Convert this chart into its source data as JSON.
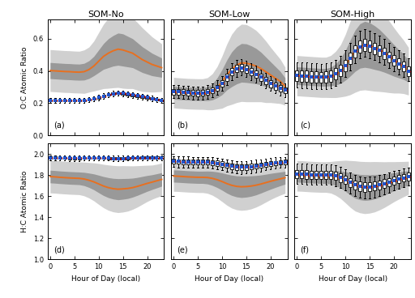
{
  "hours": [
    0,
    1,
    2,
    3,
    4,
    5,
    6,
    7,
    8,
    9,
    10,
    11,
    12,
    13,
    14,
    15,
    16,
    17,
    18,
    19,
    20,
    21,
    22,
    23
  ],
  "titles": [
    "SOM-No",
    "SOM-Low",
    "SOM-High"
  ],
  "panel_labels_top": [
    "(a)",
    "(b)",
    "(c)"
  ],
  "panel_labels_bot": [
    "(d)",
    "(e)",
    "(f)"
  ],
  "ylabel_top": "O:C Atomic Ratio",
  "ylabel_bot": "H:C Atomic Ratio",
  "xlabel": "Hour of Day (local)",
  "oc_sim_mean_no": [
    0.402,
    0.4,
    0.398,
    0.396,
    0.395,
    0.393,
    0.392,
    0.395,
    0.408,
    0.43,
    0.46,
    0.49,
    0.51,
    0.525,
    0.535,
    0.53,
    0.52,
    0.51,
    0.49,
    0.47,
    0.455,
    0.44,
    0.43,
    0.42
  ],
  "oc_sim_std1_no": [
    0.05,
    0.05,
    0.05,
    0.05,
    0.05,
    0.05,
    0.05,
    0.052,
    0.055,
    0.06,
    0.07,
    0.08,
    0.09,
    0.095,
    0.1,
    0.1,
    0.095,
    0.09,
    0.085,
    0.08,
    0.075,
    0.07,
    0.065,
    0.06
  ],
  "oc_sim_std2_no": [
    0.13,
    0.13,
    0.13,
    0.13,
    0.13,
    0.13,
    0.13,
    0.135,
    0.14,
    0.155,
    0.178,
    0.2,
    0.218,
    0.23,
    0.238,
    0.238,
    0.23,
    0.22,
    0.21,
    0.198,
    0.185,
    0.172,
    0.16,
    0.148
  ],
  "oc_obs_median_no": [
    0.215,
    0.215,
    0.215,
    0.215,
    0.215,
    0.215,
    0.215,
    0.218,
    0.222,
    0.228,
    0.235,
    0.243,
    0.252,
    0.258,
    0.262,
    0.26,
    0.255,
    0.25,
    0.245,
    0.24,
    0.235,
    0.228,
    0.222,
    0.218
  ],
  "oc_obs_q1_no": [
    0.21,
    0.21,
    0.21,
    0.21,
    0.21,
    0.21,
    0.21,
    0.213,
    0.216,
    0.222,
    0.228,
    0.237,
    0.246,
    0.252,
    0.256,
    0.254,
    0.248,
    0.243,
    0.238,
    0.233,
    0.228,
    0.222,
    0.216,
    0.213
  ],
  "oc_obs_q3_no": [
    0.22,
    0.22,
    0.22,
    0.22,
    0.22,
    0.22,
    0.22,
    0.223,
    0.228,
    0.234,
    0.242,
    0.25,
    0.259,
    0.265,
    0.269,
    0.267,
    0.262,
    0.257,
    0.252,
    0.247,
    0.242,
    0.235,
    0.228,
    0.224
  ],
  "oc_obs_wlo_no": [
    0.2,
    0.2,
    0.2,
    0.2,
    0.2,
    0.2,
    0.2,
    0.203,
    0.206,
    0.212,
    0.218,
    0.227,
    0.236,
    0.242,
    0.246,
    0.244,
    0.238,
    0.233,
    0.228,
    0.223,
    0.218,
    0.212,
    0.206,
    0.203
  ],
  "oc_obs_whi_no": [
    0.23,
    0.23,
    0.23,
    0.23,
    0.23,
    0.23,
    0.23,
    0.233,
    0.238,
    0.244,
    0.252,
    0.26,
    0.269,
    0.275,
    0.279,
    0.277,
    0.272,
    0.267,
    0.262,
    0.257,
    0.252,
    0.245,
    0.238,
    0.234
  ],
  "oc_sim_mean_low": [
    0.265,
    0.262,
    0.26,
    0.258,
    0.257,
    0.256,
    0.256,
    0.258,
    0.27,
    0.295,
    0.33,
    0.375,
    0.41,
    0.435,
    0.45,
    0.448,
    0.44,
    0.43,
    0.415,
    0.395,
    0.375,
    0.355,
    0.335,
    0.305
  ],
  "oc_sim_std1_low": [
    0.04,
    0.04,
    0.04,
    0.04,
    0.04,
    0.04,
    0.04,
    0.043,
    0.05,
    0.062,
    0.078,
    0.093,
    0.108,
    0.116,
    0.12,
    0.12,
    0.116,
    0.11,
    0.102,
    0.092,
    0.082,
    0.072,
    0.062,
    0.052
  ],
  "oc_sim_std2_low": [
    0.095,
    0.095,
    0.095,
    0.095,
    0.095,
    0.095,
    0.095,
    0.1,
    0.112,
    0.132,
    0.162,
    0.192,
    0.218,
    0.232,
    0.24,
    0.24,
    0.232,
    0.222,
    0.207,
    0.192,
    0.172,
    0.155,
    0.138,
    0.118
  ],
  "oc_obs_median_low": [
    0.27,
    0.27,
    0.268,
    0.265,
    0.263,
    0.262,
    0.263,
    0.268,
    0.278,
    0.295,
    0.32,
    0.36,
    0.395,
    0.415,
    0.42,
    0.41,
    0.395,
    0.38,
    0.36,
    0.34,
    0.32,
    0.305,
    0.29,
    0.28
  ],
  "oc_obs_q1_low": [
    0.252,
    0.252,
    0.25,
    0.247,
    0.245,
    0.244,
    0.245,
    0.25,
    0.26,
    0.276,
    0.3,
    0.338,
    0.372,
    0.392,
    0.397,
    0.387,
    0.372,
    0.357,
    0.337,
    0.317,
    0.299,
    0.284,
    0.27,
    0.261
  ],
  "oc_obs_q3_low": [
    0.288,
    0.288,
    0.286,
    0.283,
    0.281,
    0.28,
    0.281,
    0.286,
    0.296,
    0.314,
    0.34,
    0.382,
    0.418,
    0.438,
    0.443,
    0.433,
    0.418,
    0.403,
    0.383,
    0.363,
    0.341,
    0.326,
    0.311,
    0.299
  ],
  "oc_obs_wlo_low": [
    0.23,
    0.23,
    0.228,
    0.225,
    0.223,
    0.222,
    0.223,
    0.228,
    0.238,
    0.253,
    0.275,
    0.312,
    0.344,
    0.364,
    0.37,
    0.36,
    0.344,
    0.329,
    0.311,
    0.293,
    0.275,
    0.261,
    0.248,
    0.239
  ],
  "oc_obs_whi_low": [
    0.31,
    0.31,
    0.308,
    0.306,
    0.304,
    0.303,
    0.304,
    0.31,
    0.322,
    0.34,
    0.368,
    0.412,
    0.447,
    0.467,
    0.472,
    0.462,
    0.447,
    0.432,
    0.41,
    0.388,
    0.368,
    0.35,
    0.334,
    0.321
  ],
  "oc_sim_mean_high": [
    0.37,
    0.368,
    0.366,
    0.364,
    0.362,
    0.36,
    0.36,
    0.365,
    0.378,
    0.4,
    0.435,
    0.48,
    0.525,
    0.555,
    0.565,
    0.558,
    0.545,
    0.53,
    0.51,
    0.488,
    0.465,
    0.445,
    0.425,
    0.398
  ],
  "oc_sim_std1_high": [
    0.055,
    0.055,
    0.055,
    0.055,
    0.055,
    0.055,
    0.055,
    0.058,
    0.066,
    0.078,
    0.093,
    0.112,
    0.128,
    0.138,
    0.143,
    0.141,
    0.136,
    0.128,
    0.118,
    0.108,
    0.098,
    0.088,
    0.078,
    0.068
  ],
  "oc_sim_std2_high": [
    0.125,
    0.125,
    0.125,
    0.125,
    0.125,
    0.125,
    0.125,
    0.131,
    0.144,
    0.162,
    0.192,
    0.228,
    0.258,
    0.276,
    0.283,
    0.28,
    0.271,
    0.258,
    0.241,
    0.223,
    0.203,
    0.183,
    0.166,
    0.148
  ],
  "oc_obs_median_high": [
    0.37,
    0.368,
    0.366,
    0.364,
    0.362,
    0.36,
    0.362,
    0.368,
    0.382,
    0.403,
    0.433,
    0.477,
    0.522,
    0.55,
    0.56,
    0.552,
    0.54,
    0.526,
    0.507,
    0.486,
    0.464,
    0.445,
    0.426,
    0.398
  ],
  "oc_obs_q1_high": [
    0.335,
    0.333,
    0.331,
    0.329,
    0.327,
    0.325,
    0.327,
    0.333,
    0.346,
    0.367,
    0.397,
    0.441,
    0.485,
    0.513,
    0.523,
    0.516,
    0.504,
    0.491,
    0.473,
    0.453,
    0.432,
    0.414,
    0.396,
    0.369
  ],
  "oc_obs_q3_high": [
    0.405,
    0.403,
    0.401,
    0.399,
    0.397,
    0.395,
    0.397,
    0.403,
    0.418,
    0.439,
    0.469,
    0.513,
    0.559,
    0.587,
    0.597,
    0.588,
    0.576,
    0.561,
    0.541,
    0.519,
    0.496,
    0.476,
    0.456,
    0.427
  ],
  "oc_obs_wlo_high": [
    0.295,
    0.293,
    0.291,
    0.289,
    0.287,
    0.285,
    0.287,
    0.293,
    0.307,
    0.329,
    0.36,
    0.405,
    0.449,
    0.478,
    0.488,
    0.48,
    0.468,
    0.455,
    0.438,
    0.418,
    0.397,
    0.379,
    0.361,
    0.335
  ],
  "oc_obs_whi_high": [
    0.455,
    0.453,
    0.451,
    0.449,
    0.447,
    0.445,
    0.447,
    0.455,
    0.47,
    0.493,
    0.527,
    0.573,
    0.619,
    0.647,
    0.657,
    0.648,
    0.635,
    0.619,
    0.598,
    0.574,
    0.549,
    0.528,
    0.506,
    0.476
  ],
  "hc_sim_mean_no": [
    1.785,
    1.782,
    1.778,
    1.775,
    1.772,
    1.77,
    1.768,
    1.762,
    1.75,
    1.735,
    1.715,
    1.695,
    1.68,
    1.67,
    1.665,
    1.668,
    1.672,
    1.68,
    1.692,
    1.706,
    1.72,
    1.732,
    1.745,
    1.758
  ],
  "hc_sim_std1_no": [
    0.06,
    0.06,
    0.06,
    0.06,
    0.06,
    0.06,
    0.06,
    0.063,
    0.068,
    0.075,
    0.083,
    0.09,
    0.095,
    0.098,
    0.1,
    0.098,
    0.095,
    0.09,
    0.085,
    0.08,
    0.075,
    0.07,
    0.067,
    0.064
  ],
  "hc_sim_std2_no": [
    0.155,
    0.155,
    0.155,
    0.155,
    0.155,
    0.155,
    0.155,
    0.16,
    0.168,
    0.18,
    0.194,
    0.206,
    0.215,
    0.22,
    0.222,
    0.22,
    0.215,
    0.206,
    0.196,
    0.184,
    0.172,
    0.162,
    0.157,
    0.155
  ],
  "hc_obs_median_no": [
    1.965,
    1.965,
    1.963,
    1.961,
    1.96,
    1.96,
    1.96,
    1.962,
    1.963,
    1.963,
    1.963,
    1.962,
    1.96,
    1.958,
    1.957,
    1.958,
    1.96,
    1.961,
    1.963,
    1.964,
    1.964,
    1.965,
    1.965,
    1.965
  ],
  "hc_obs_q1_no": [
    1.955,
    1.955,
    1.953,
    1.951,
    1.95,
    1.95,
    1.95,
    1.952,
    1.953,
    1.953,
    1.952,
    1.951,
    1.949,
    1.947,
    1.946,
    1.947,
    1.949,
    1.951,
    1.953,
    1.954,
    1.954,
    1.955,
    1.955,
    1.955
  ],
  "hc_obs_q3_no": [
    1.975,
    1.975,
    1.973,
    1.971,
    1.97,
    1.97,
    1.97,
    1.972,
    1.973,
    1.973,
    1.973,
    1.973,
    1.971,
    1.969,
    1.968,
    1.969,
    1.971,
    1.972,
    1.973,
    1.974,
    1.974,
    1.975,
    1.975,
    1.975
  ],
  "hc_obs_wlo_no": [
    1.94,
    1.94,
    1.938,
    1.936,
    1.935,
    1.935,
    1.935,
    1.937,
    1.939,
    1.94,
    1.94,
    1.939,
    1.937,
    1.935,
    1.934,
    1.935,
    1.937,
    1.939,
    1.94,
    1.941,
    1.941,
    1.941,
    1.941,
    1.94
  ],
  "hc_obs_whi_no": [
    1.988,
    1.988,
    1.986,
    1.984,
    1.983,
    1.983,
    1.983,
    1.985,
    1.986,
    1.987,
    1.987,
    1.987,
    1.985,
    1.983,
    1.982,
    1.983,
    1.985,
    1.986,
    1.987,
    1.988,
    1.988,
    1.988,
    1.988,
    1.988
  ],
  "hc_sim_mean_low": [
    1.79,
    1.788,
    1.785,
    1.782,
    1.78,
    1.778,
    1.778,
    1.776,
    1.768,
    1.755,
    1.738,
    1.718,
    1.702,
    1.692,
    1.688,
    1.69,
    1.695,
    1.703,
    1.714,
    1.727,
    1.74,
    1.752,
    1.763,
    1.774
  ],
  "hc_sim_std1_low": [
    0.058,
    0.058,
    0.058,
    0.058,
    0.058,
    0.058,
    0.058,
    0.061,
    0.067,
    0.074,
    0.082,
    0.09,
    0.096,
    0.1,
    0.102,
    0.1,
    0.097,
    0.092,
    0.086,
    0.08,
    0.075,
    0.07,
    0.065,
    0.061
  ],
  "hc_sim_std2_low": [
    0.145,
    0.145,
    0.145,
    0.145,
    0.145,
    0.145,
    0.145,
    0.15,
    0.16,
    0.174,
    0.19,
    0.205,
    0.216,
    0.222,
    0.224,
    0.222,
    0.217,
    0.208,
    0.197,
    0.185,
    0.173,
    0.163,
    0.154,
    0.148
  ],
  "hc_obs_median_low": [
    1.93,
    1.928,
    1.926,
    1.924,
    1.923,
    1.923,
    1.923,
    1.922,
    1.918,
    1.912,
    1.903,
    1.892,
    1.882,
    1.876,
    1.874,
    1.876,
    1.88,
    1.886,
    1.893,
    1.9,
    1.907,
    1.913,
    1.918,
    1.922
  ],
  "hc_obs_q1_low": [
    1.908,
    1.906,
    1.904,
    1.902,
    1.901,
    1.901,
    1.901,
    1.9,
    1.895,
    1.888,
    1.878,
    1.866,
    1.855,
    1.849,
    1.847,
    1.849,
    1.854,
    1.861,
    1.869,
    1.877,
    1.885,
    1.891,
    1.897,
    1.901
  ],
  "hc_obs_q3_low": [
    1.952,
    1.95,
    1.948,
    1.946,
    1.945,
    1.945,
    1.945,
    1.944,
    1.941,
    1.936,
    1.928,
    1.918,
    1.909,
    1.903,
    1.901,
    1.903,
    1.906,
    1.911,
    1.917,
    1.923,
    1.929,
    1.935,
    1.939,
    1.943
  ],
  "hc_obs_wlo_low": [
    1.875,
    1.873,
    1.871,
    1.869,
    1.868,
    1.868,
    1.868,
    1.867,
    1.862,
    1.855,
    1.844,
    1.831,
    1.82,
    1.813,
    1.811,
    1.813,
    1.818,
    1.826,
    1.835,
    1.844,
    1.853,
    1.86,
    1.866,
    1.871
  ],
  "hc_obs_whi_low": [
    1.98,
    1.978,
    1.976,
    1.974,
    1.973,
    1.973,
    1.973,
    1.972,
    1.969,
    1.964,
    1.957,
    1.948,
    1.94,
    1.935,
    1.933,
    1.935,
    1.938,
    1.943,
    1.949,
    1.955,
    1.961,
    1.966,
    1.97,
    1.973
  ],
  "hc_sim_mean_high": [
    1.792,
    1.79,
    1.787,
    1.784,
    1.782,
    1.78,
    1.78,
    1.778,
    1.77,
    1.757,
    1.738,
    1.715,
    1.696,
    1.685,
    1.68,
    1.682,
    1.688,
    1.697,
    1.708,
    1.722,
    1.736,
    1.749,
    1.761,
    1.773
  ],
  "hc_sim_std1_high": [
    0.06,
    0.06,
    0.06,
    0.06,
    0.06,
    0.06,
    0.06,
    0.063,
    0.07,
    0.08,
    0.093,
    0.106,
    0.116,
    0.12,
    0.122,
    0.12,
    0.116,
    0.109,
    0.101,
    0.093,
    0.086,
    0.08,
    0.074,
    0.068
  ],
  "hc_sim_std2_high": [
    0.145,
    0.145,
    0.145,
    0.145,
    0.145,
    0.145,
    0.145,
    0.15,
    0.163,
    0.18,
    0.202,
    0.222,
    0.238,
    0.244,
    0.247,
    0.244,
    0.239,
    0.229,
    0.217,
    0.204,
    0.19,
    0.178,
    0.167,
    0.157
  ],
  "hc_obs_median_high": [
    1.808,
    1.806,
    1.804,
    1.802,
    1.801,
    1.801,
    1.801,
    1.798,
    1.79,
    1.775,
    1.754,
    1.728,
    1.705,
    1.692,
    1.685,
    1.688,
    1.694,
    1.704,
    1.717,
    1.731,
    1.746,
    1.759,
    1.772,
    1.785
  ],
  "hc_obs_q1_high": [
    1.77,
    1.768,
    1.766,
    1.764,
    1.763,
    1.763,
    1.763,
    1.76,
    1.751,
    1.735,
    1.713,
    1.686,
    1.662,
    1.648,
    1.641,
    1.644,
    1.651,
    1.662,
    1.676,
    1.692,
    1.708,
    1.722,
    1.736,
    1.75
  ],
  "hc_obs_q3_high": [
    1.848,
    1.846,
    1.844,
    1.842,
    1.841,
    1.841,
    1.841,
    1.838,
    1.83,
    1.816,
    1.796,
    1.77,
    1.748,
    1.736,
    1.729,
    1.732,
    1.738,
    1.748,
    1.76,
    1.773,
    1.786,
    1.798,
    1.809,
    1.821
  ],
  "hc_obs_wlo_high": [
    1.715,
    1.713,
    1.711,
    1.709,
    1.708,
    1.708,
    1.708,
    1.705,
    1.695,
    1.678,
    1.654,
    1.624,
    1.599,
    1.585,
    1.578,
    1.581,
    1.589,
    1.601,
    1.616,
    1.633,
    1.651,
    1.667,
    1.682,
    1.697
  ],
  "hc_obs_whi_high": [
    1.91,
    1.908,
    1.906,
    1.904,
    1.903,
    1.903,
    1.903,
    1.9,
    1.891,
    1.875,
    1.852,
    1.824,
    1.8,
    1.787,
    1.78,
    1.783,
    1.789,
    1.799,
    1.811,
    1.824,
    1.837,
    1.849,
    1.86,
    1.872
  ],
  "sim_color": "#E87020",
  "shade1_color": "#999999",
  "shade2_color": "#d0d0d0",
  "obs_box_color": "#000000",
  "obs_median_color": "#cc0000",
  "obs_mean_color": "#2255cc",
  "obs_dot_color": "#800080",
  "oc_ylim": [
    0.0,
    0.72
  ],
  "hc_ylim": [
    1.0,
    2.1
  ],
  "oc_yticks": [
    0.0,
    0.2,
    0.4,
    0.6
  ],
  "hc_yticks": [
    1.0,
    1.2,
    1.4,
    1.6,
    1.8,
    2.0
  ],
  "xticks": [
    0,
    5,
    10,
    15,
    20
  ],
  "xlim": [
    -0.5,
    23.5
  ]
}
